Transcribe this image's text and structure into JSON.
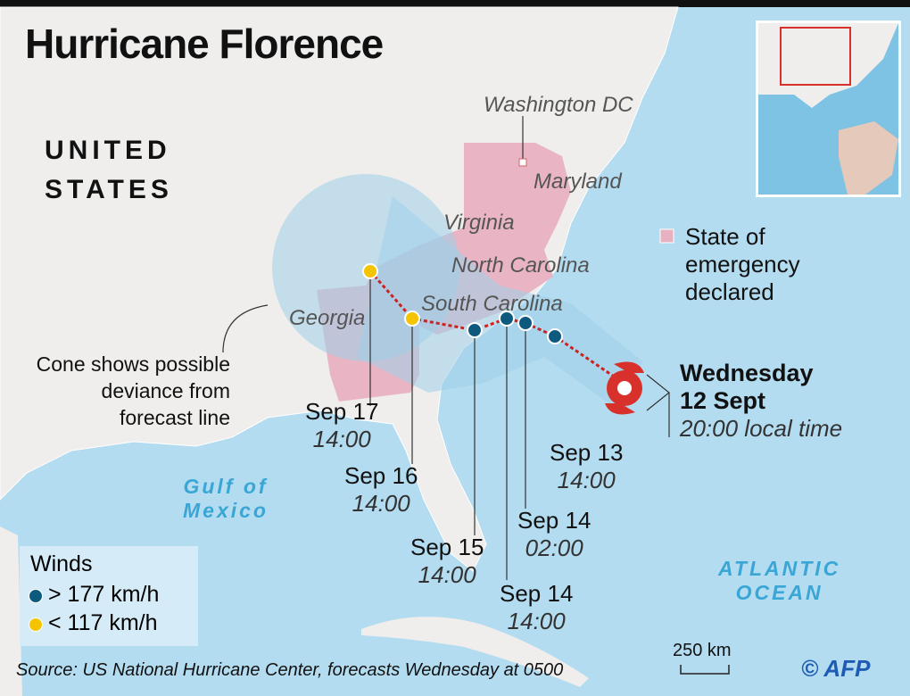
{
  "title": "Hurricane Florence",
  "country_label": [
    "UNITED",
    "STATES"
  ],
  "states": {
    "washington": "Washington DC",
    "maryland": "Maryland",
    "virginia": "Virginia",
    "north_carolina": "North Carolina",
    "south_carolina": "South Carolina",
    "georgia": "Georgia"
  },
  "oceans": {
    "gulf": [
      "Gulf of",
      "Mexico"
    ],
    "atlantic": [
      "ATLANTIC",
      "OCEAN"
    ]
  },
  "emergency_legend": [
    "State of",
    "emergency",
    "declared"
  ],
  "cone_note": [
    "Cone shows possible",
    "deviance from",
    "forecast line"
  ],
  "current": {
    "day": "Wednesday",
    "date": "12 Sept",
    "time": "20:00 local time"
  },
  "forecast_points": [
    {
      "date": "Sep 13",
      "time": "14:00",
      "wind": "> 177 km/h"
    },
    {
      "date": "Sep 14",
      "time": "02:00",
      "wind": "> 177 km/h"
    },
    {
      "date": "Sep 14",
      "time": "14:00",
      "wind": "> 177 km/h"
    },
    {
      "date": "Sep 15",
      "time": "14:00",
      "wind": "> 177 km/h"
    },
    {
      "date": "Sep 16",
      "time": "14:00",
      "wind": "< 117 km/h"
    },
    {
      "date": "Sep 17",
      "time": "14:00",
      "wind": "< 117 km/h"
    }
  ],
  "legend": {
    "title": "Winds",
    "items": [
      {
        "label": "> 177 km/h",
        "color": "#0d5a7e"
      },
      {
        "label": "< 117 km/h",
        "color": "#f5c400"
      }
    ]
  },
  "scale": "250 km",
  "source": "Source: US National Hurricane Center, forecasts Wednesday at 0500",
  "credit": "© AFP",
  "colors": {
    "ocean": "#b3dcf0",
    "land": "#efeeec",
    "emergency": "#e8b1c2",
    "cone": "#9fd0ea",
    "track": "#cc2222",
    "hurricane": "#d8302a"
  }
}
